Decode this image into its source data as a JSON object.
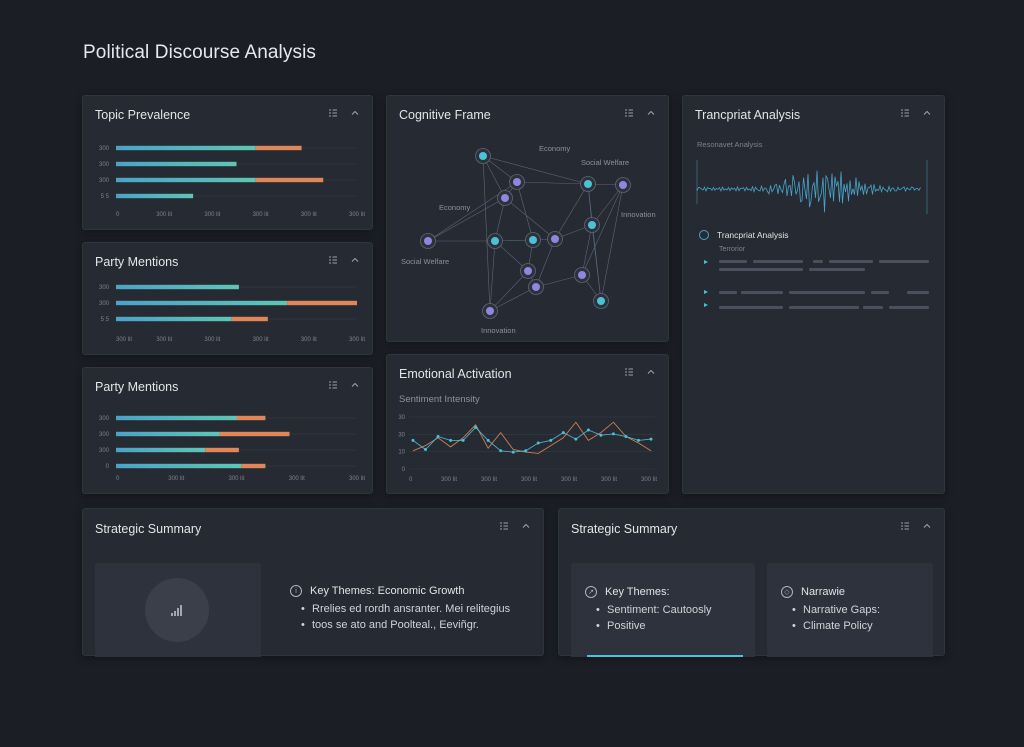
{
  "page": {
    "title": "Political Discourse Analysis"
  },
  "panels": {
    "topic_prevalence": {
      "title": "Topic Prevalence",
      "y_ticks": [
        "300",
        "300",
        "300",
        "5 5"
      ],
      "x_ticks": [
        "0",
        "300 lit",
        "300 lit",
        "300 lit",
        "300 lit",
        "300 lit"
      ]
    },
    "party_mentions_1": {
      "title": "Party Mentions",
      "y_ticks": [
        "300",
        "300",
        "5 5"
      ],
      "x_ticks": [
        "300 lit",
        "300 lit",
        "300 lit",
        "300 lit",
        "300 lit",
        "300 lit"
      ]
    },
    "party_mentions_2": {
      "title": "Party Mentions",
      "y_ticks": [
        "300",
        "300",
        "300",
        "0"
      ],
      "x_ticks": [
        "0",
        "300 lit",
        "300 lit",
        "300 lit",
        "300 lit"
      ]
    },
    "cognitive_frame": {
      "title": "Cognitive Frame",
      "labels": [
        "Economy",
        "Social Welfare",
        "Economy",
        "Innovation",
        "Social Welfare",
        "Innovation"
      ]
    },
    "emotional_activation": {
      "title": "Emotional Activation",
      "subtitle": "Sentiment Intensity",
      "y_ticks": [
        "30",
        "30",
        "10",
        "0"
      ],
      "x_ticks": [
        "0",
        "300 lit",
        "300 lit",
        "300 lit",
        "300 lit",
        "300 lit",
        "300 lit"
      ]
    },
    "transcript": {
      "title": "Trancpriat Analysis",
      "waveform_label": "Resonavet Analysis",
      "section_title": "Trancpriat Analysis",
      "section_sub": "Terrorior"
    },
    "summary_left": {
      "title": "Strategic Summary",
      "heading": "Key Themes: Economic Growth",
      "bullets": [
        "Rrelies ed rordh ansranter. Mei relitegius",
        "toos se ato and Poolteal., Eeviñgr."
      ]
    },
    "summary_right": {
      "title": "Strategic Summary",
      "card1": {
        "heading": "Key Themes:",
        "bullets": [
          "Sentiment: Cautoosly",
          "Positive"
        ]
      },
      "card2": {
        "heading": "Narrawie",
        "bullets": [
          "Narrative Gaps:",
          "Climate Policy"
        ]
      }
    }
  },
  "icons": {
    "panel_menu": "list-icon",
    "collapse": "chevron-up-icon",
    "summary": "bar-chart-icon",
    "theme": "info-icon"
  },
  "colors": {
    "teal": "#5fc5b4",
    "blue": "#4aa3c8",
    "orange": "#e0875a",
    "purple": "#8f86e0",
    "cyan": "#4cc0d6"
  },
  "chart_data": [
    {
      "type": "bar",
      "title": "Topic Prevalence",
      "orientation": "horizontal",
      "xlim": [
        0,
        100
      ],
      "series": [
        {
          "values": [
            58,
            50,
            58,
            32
          ]
        },
        {
          "values": [
            19,
            0,
            28,
            0
          ]
        }
      ]
    },
    {
      "type": "bar",
      "title": "Party Mentions",
      "orientation": "horizontal",
      "xlim": [
        0,
        100
      ],
      "series": [
        {
          "values": [
            51,
            71,
            48
          ]
        },
        {
          "values": [
            0,
            29,
            15
          ]
        }
      ]
    },
    {
      "type": "bar",
      "title": "Party Mentions",
      "orientation": "horizontal",
      "xlim": [
        0,
        100
      ],
      "series": [
        {
          "values": [
            50,
            43,
            37,
            52
          ]
        },
        {
          "values": [
            12,
            29,
            14,
            10
          ]
        }
      ]
    },
    {
      "type": "line",
      "title": "Emotional Activation",
      "subtitle": "Sentiment Intensity",
      "ylim": [
        0,
        40
      ],
      "series": [
        {
          "values": [
            14,
            18,
            24,
            17,
            24,
            34,
            16,
            28,
            15,
            13,
            12,
            18,
            24,
            36,
            22,
            28,
            36,
            25,
            20,
            14
          ]
        },
        {
          "values": [
            22,
            15,
            25,
            22,
            22,
            32,
            22,
            14,
            13,
            14,
            20,
            22,
            28,
            23,
            30,
            26,
            27,
            25,
            22,
            23
          ]
        }
      ]
    }
  ]
}
